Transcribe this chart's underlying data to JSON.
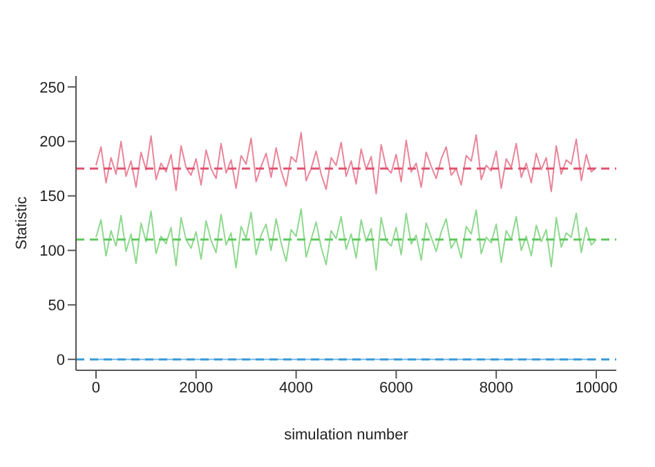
{
  "chart_data": {
    "type": "line",
    "xlabel": "simulation number",
    "ylabel": "Statistic",
    "x": [
      0,
      100,
      200,
      300,
      400,
      500,
      600,
      700,
      800,
      900,
      1000,
      1100,
      1200,
      1300,
      1400,
      1500,
      1600,
      1700,
      1800,
      1900,
      2000,
      2100,
      2200,
      2300,
      2400,
      2500,
      2600,
      2700,
      2800,
      2900,
      3000,
      3100,
      3200,
      3300,
      3400,
      3500,
      3600,
      3700,
      3800,
      3900,
      4000,
      4100,
      4200,
      4300,
      4400,
      4500,
      4600,
      4700,
      4800,
      4900,
      5000,
      5100,
      5200,
      5300,
      5400,
      5500,
      5600,
      5700,
      5800,
      5900,
      6000,
      6100,
      6200,
      6300,
      6400,
      6500,
      6600,
      6700,
      6800,
      6900,
      7000,
      7100,
      7200,
      7300,
      7400,
      7500,
      7600,
      7700,
      7800,
      7900,
      8000,
      8100,
      8200,
      8300,
      8400,
      8500,
      8600,
      8700,
      8800,
      8900,
      9000,
      9100,
      9200,
      9300,
      9400,
      9500,
      9600,
      9700,
      9800,
      9900,
      10000
    ],
    "series": [
      {
        "color": "#e0506e",
        "values": [
          178,
          195,
          162,
          185,
          170,
          200,
          168,
          182,
          158,
          190,
          174,
          205,
          165,
          180,
          172,
          188,
          155,
          196,
          176,
          169,
          184,
          160,
          192,
          175,
          166,
          198,
          171,
          183,
          157,
          187,
          179,
          203,
          163,
          177,
          189,
          167,
          194,
          173,
          159,
          186,
          181,
          208,
          164,
          175,
          191,
          170,
          156,
          185,
          178,
          199,
          168,
          182,
          161,
          193,
          174,
          186,
          152,
          197,
          176,
          171,
          188,
          163,
          201,
          172,
          180,
          158,
          190,
          177,
          166,
          184,
          195,
          169,
          175,
          160,
          187,
          182,
          206,
          165,
          178,
          173,
          191,
          157,
          184,
          176,
          198,
          167,
          180,
          162,
          189,
          174,
          185,
          154,
          196,
          170,
          183,
          179,
          202,
          164,
          188,
          172,
          176
        ]
      },
      {
        "color": "#5cc85c",
        "values": [
          112,
          128,
          95,
          118,
          104,
          132,
          99,
          115,
          88,
          125,
          108,
          136,
          97,
          113,
          106,
          121,
          86,
          130,
          110,
          102,
          117,
          92,
          127,
          109,
          98,
          133,
          105,
          116,
          84,
          122,
          111,
          135,
          96,
          114,
          124,
          100,
          129,
          107,
          90,
          119,
          113,
          138,
          94,
          110,
          126,
          103,
          87,
          118,
          111,
          131,
          101,
          115,
          93,
          128,
          108,
          120,
          82,
          130,
          109,
          104,
          121,
          96,
          134,
          106,
          114,
          91,
          125,
          112,
          99,
          117,
          129,
          102,
          110,
          93,
          122,
          115,
          137,
          97,
          112,
          107,
          124,
          89,
          118,
          110,
          131,
          100,
          113,
          95,
          123,
          108,
          119,
          85,
          130,
          103,
          116,
          112,
          134,
          98,
          121,
          105,
          110
        ]
      },
      {
        "color": "#3a9ad9",
        "values": [
          0,
          0,
          0,
          0,
          0,
          0,
          0,
          0,
          0,
          0,
          0,
          0,
          0,
          0,
          0,
          0,
          0,
          0,
          0,
          0,
          0,
          0,
          0,
          0,
          0,
          0,
          0,
          0,
          0,
          0,
          0,
          0,
          0,
          0,
          0,
          0,
          0,
          0,
          0,
          0,
          0,
          0,
          0,
          0,
          0,
          0,
          0,
          0,
          0,
          0,
          0,
          0,
          0,
          0,
          0,
          0,
          0,
          0,
          0,
          0,
          0,
          0,
          0,
          0,
          0,
          0,
          0,
          0,
          0,
          0,
          0,
          0,
          0,
          0,
          0,
          0,
          0,
          0,
          0,
          0,
          0,
          0,
          0,
          0,
          0,
          0,
          0,
          0,
          0,
          0,
          0,
          0,
          0,
          0,
          0,
          0,
          0,
          0,
          0,
          0,
          0
        ]
      }
    ],
    "ref_lines": [
      {
        "axis": "y",
        "value": 175,
        "color": "#e0506e",
        "line_style": "dashed"
      },
      {
        "axis": "y",
        "value": 110,
        "color": "#5cc85c",
        "line_style": "dashed"
      },
      {
        "axis": "y",
        "value": 0,
        "color": "#3a9ad9",
        "line_style": "dashed"
      }
    ],
    "xlim": [
      -400,
      10400
    ],
    "xticks": [
      0,
      2000,
      4000,
      6000,
      8000,
      10000
    ],
    "ylim": [
      -10,
      260
    ],
    "yticks": [
      0,
      50,
      100,
      150,
      200,
      250
    ],
    "marker": "none",
    "line_style": "solid"
  }
}
